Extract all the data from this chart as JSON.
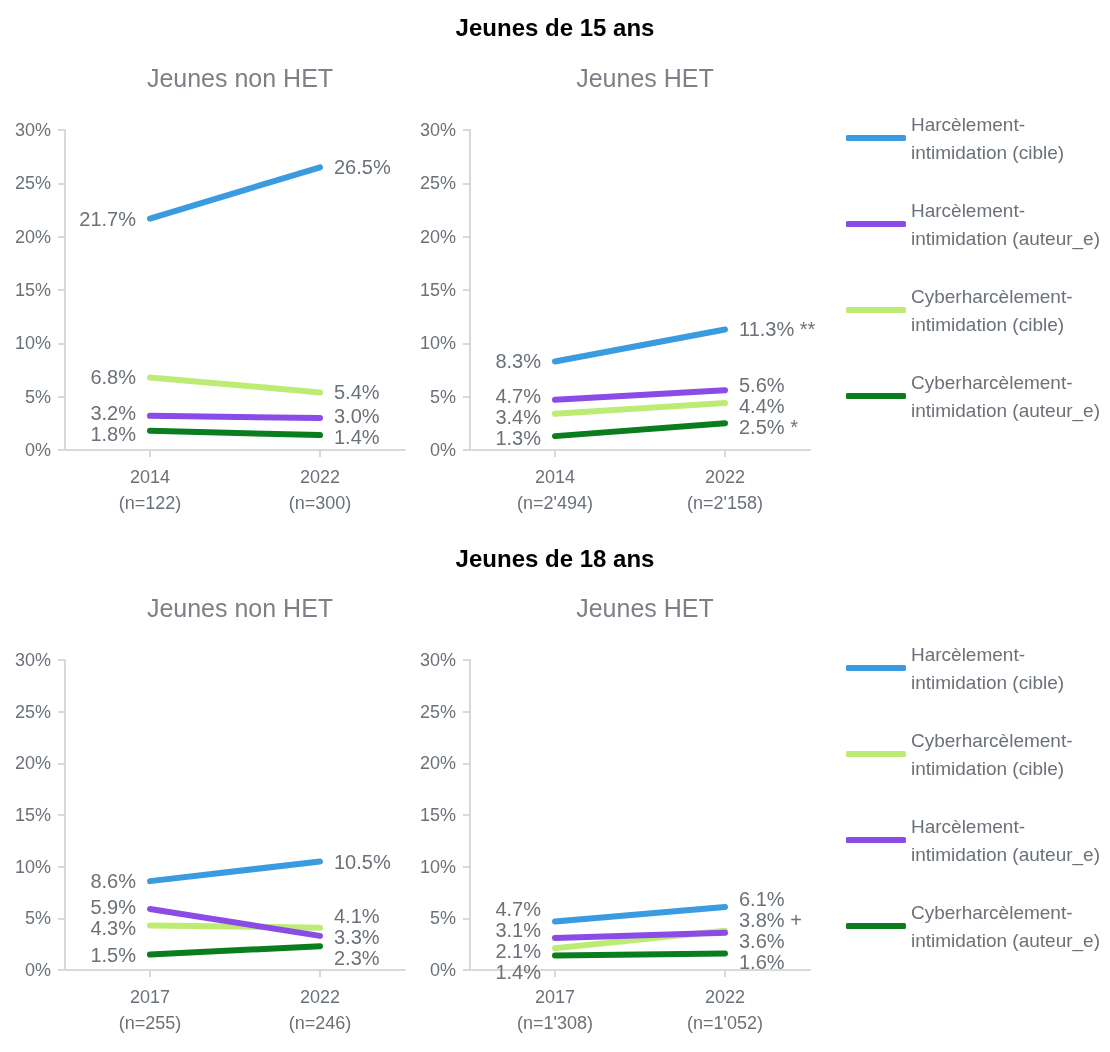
{
  "chart_data": [
    {
      "type": "line",
      "title": "Jeunes non HET",
      "annotations": [
        "Jeunes de 15 ans"
      ],
      "categories": [
        "2014\n(n=122)",
        "2022\n(n=300)"
      ],
      "series": [
        {
          "color": "#3a9be0",
          "values": [
            21.7,
            26.5
          ],
          "value_labels": [
            "21.7%",
            "26.5%"
          ]
        },
        {
          "color": "#8a4be6",
          "values": [
            3.2,
            3.0
          ],
          "value_labels": [
            "3.2%",
            "3.0%"
          ]
        },
        {
          "color": "#bdec74",
          "values": [
            6.8,
            5.4
          ],
          "value_labels": [
            "6.8%",
            "5.4%"
          ]
        },
        {
          "color": "#0a7d1f",
          "values": [
            1.8,
            1.4
          ],
          "value_labels": [
            "1.8%",
            "1.4%"
          ]
        }
      ],
      "ylim": [
        0,
        30
      ],
      "yticks": [
        {
          "value": 0,
          "label": "0%"
        },
        {
          "value": 5,
          "label": "5%"
        },
        {
          "value": 10,
          "label": "10%"
        },
        {
          "value": 15,
          "label": "15%"
        },
        {
          "value": 20,
          "label": "20%"
        },
        {
          "value": 25,
          "label": "25%"
        },
        {
          "value": 30,
          "label": "30%"
        }
      ],
      "grid": false,
      "legend": false,
      "marker": "none",
      "line_style": "solid"
    },
    {
      "type": "line",
      "title": "Jeunes HET",
      "categories": [
        "2014\n(n=2'494)",
        "2022\n(n=2'158)"
      ],
      "series": [
        {
          "name": "Harcèlement-intimidation (cible)",
          "color": "#3a9be0",
          "values": [
            8.3,
            11.3
          ],
          "value_labels": [
            "8.3%",
            "11.3% **"
          ]
        },
        {
          "name": "Harcèlement-intimidation (auteur_e)",
          "color": "#8a4be6",
          "values": [
            4.7,
            5.6
          ],
          "value_labels": [
            "4.7%",
            "5.6%"
          ]
        },
        {
          "name": "Cyberharcèlement-intimidation (cible)",
          "color": "#bdec74",
          "values": [
            3.4,
            4.4
          ],
          "value_labels": [
            "3.4%",
            "4.4%"
          ]
        },
        {
          "name": "Cyberharcèlement-intimidation (auteur_e)",
          "color": "#0a7d1f",
          "values": [
            1.3,
            2.5
          ],
          "value_labels": [
            "1.3%",
            "2.5% *"
          ]
        }
      ],
      "ylim": [
        0,
        30
      ],
      "yticks": [
        {
          "value": 0,
          "label": "0%"
        },
        {
          "value": 5,
          "label": "5%"
        },
        {
          "value": 10,
          "label": "10%"
        },
        {
          "value": 15,
          "label": "15%"
        },
        {
          "value": 20,
          "label": "20%"
        },
        {
          "value": 25,
          "label": "25%"
        },
        {
          "value": 30,
          "label": "30%"
        }
      ],
      "grid": false,
      "legend": "right",
      "marker": "none",
      "line_style": "solid"
    },
    {
      "type": "line",
      "title": "Jeunes non HET",
      "annotations": [
        "Jeunes de 18 ans"
      ],
      "categories": [
        "2017\n(n=255)",
        "2022\n(n=246)"
      ],
      "series": [
        {
          "color": "#3a9be0",
          "values": [
            8.6,
            10.5
          ],
          "value_labels": [
            "8.6%",
            "10.5%"
          ]
        },
        {
          "color": "#bdec74",
          "values": [
            4.3,
            4.1
          ],
          "value_labels": [
            "4.3%",
            "4.1%"
          ]
        },
        {
          "color": "#8a4be6",
          "values": [
            5.9,
            3.3
          ],
          "value_labels": [
            "5.9%",
            "3.3%"
          ]
        },
        {
          "color": "#0a7d1f",
          "values": [
            1.5,
            2.3
          ],
          "value_labels": [
            "1.5%",
            "2.3%"
          ]
        }
      ],
      "ylim": [
        0,
        30
      ],
      "yticks": [
        {
          "value": 0,
          "label": "0%"
        },
        {
          "value": 5,
          "label": "5%"
        },
        {
          "value": 10,
          "label": "10%"
        },
        {
          "value": 15,
          "label": "15%"
        },
        {
          "value": 20,
          "label": "20%"
        },
        {
          "value": 25,
          "label": "25%"
        },
        {
          "value": 30,
          "label": "30%"
        }
      ],
      "grid": false,
      "legend": false,
      "marker": "none",
      "line_style": "solid"
    },
    {
      "type": "line",
      "title": "Jeunes HET",
      "categories": [
        "2017\n(n=1'308)",
        "2022\n(n=1'052)"
      ],
      "series": [
        {
          "name": "Harcèlement-intimidation (cible)",
          "color": "#3a9be0",
          "values": [
            4.7,
            6.1
          ],
          "value_labels": [
            "4.7%",
            "6.1%"
          ]
        },
        {
          "name": "Cyberharcèlement-intimidation (cible)",
          "color": "#bdec74",
          "values": [
            2.1,
            3.8
          ],
          "value_labels": [
            "2.1%",
            "3.8% +"
          ]
        },
        {
          "name": "Harcèlement-intimidation (auteur_e)",
          "color": "#8a4be6",
          "values": [
            3.1,
            3.6
          ],
          "value_labels": [
            "3.1%",
            "3.6%"
          ]
        },
        {
          "name": "Cyberharcèlement-intimidation (auteur_e)",
          "color": "#0a7d1f",
          "values": [
            1.4,
            1.6
          ],
          "value_labels": [
            "1.4%",
            "1.6%"
          ]
        }
      ],
      "ylim": [
        0,
        30
      ],
      "yticks": [
        {
          "value": 0,
          "label": "0%"
        },
        {
          "value": 5,
          "label": "5%"
        },
        {
          "value": 10,
          "label": "10%"
        },
        {
          "value": 15,
          "label": "15%"
        },
        {
          "value": 20,
          "label": "20%"
        },
        {
          "value": 25,
          "label": "25%"
        },
        {
          "value": 30,
          "label": "30%"
        }
      ],
      "grid": false,
      "legend": "right",
      "marker": "none",
      "line_style": "solid"
    }
  ]
}
